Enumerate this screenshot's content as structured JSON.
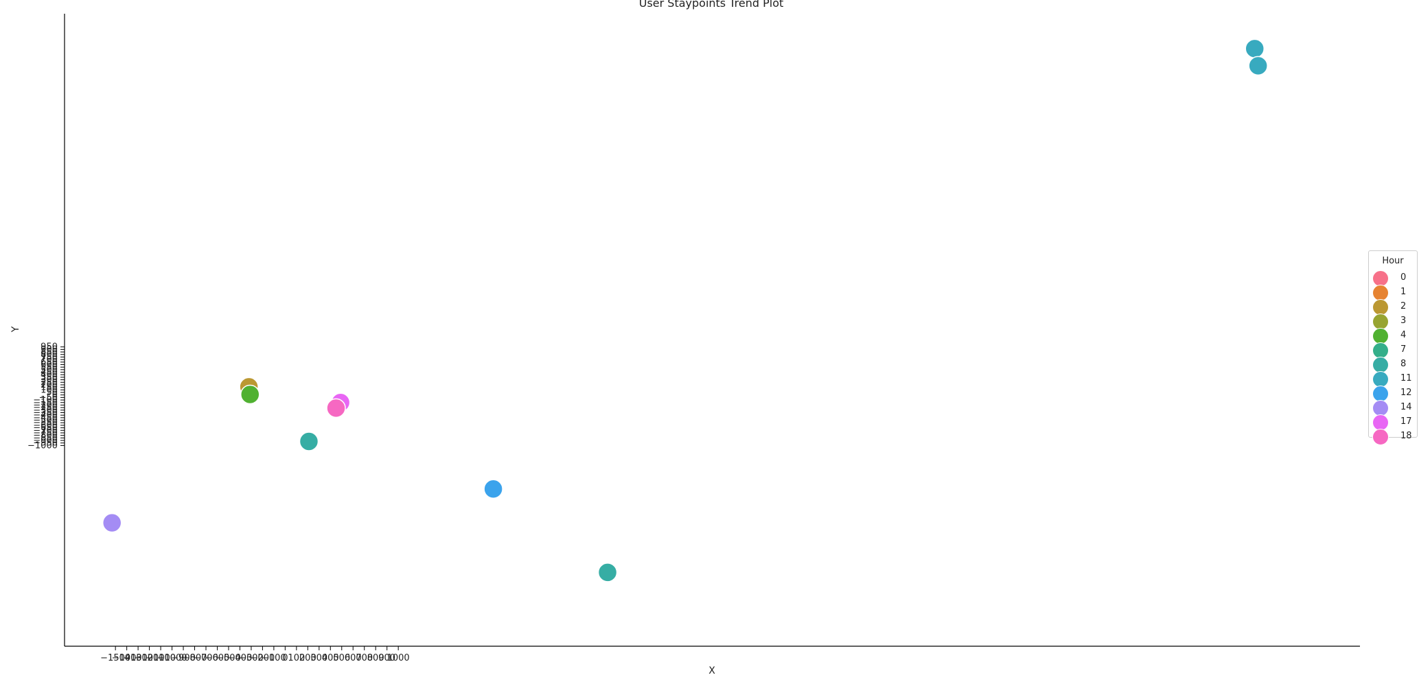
{
  "chart_data": {
    "type": "scatter",
    "title": "User Staypoints Trend Plot",
    "xlabel": "X",
    "ylabel": "Y",
    "yticks": [
      950,
      900,
      850,
      800,
      750,
      700,
      650,
      600,
      550,
      500,
      450,
      400,
      350,
      300,
      250,
      200,
      150,
      100,
      50,
      0,
      -50,
      -100,
      -150,
      -200,
      -250,
      -300,
      -350,
      -400,
      -450,
      -500,
      -550,
      -600,
      -650,
      -700,
      -750,
      -800,
      -850,
      -900,
      -950,
      -1000
    ],
    "xticks": [
      -1500,
      -1400,
      -1300,
      -1200,
      -1100,
      -1000,
      -900,
      -800,
      -700,
      -600,
      -500,
      -400,
      -300,
      -200,
      -100,
      0,
      100,
      200,
      300,
      400,
      500,
      600,
      700,
      800,
      900,
      1000
    ],
    "xlim": [
      -1950,
      9500
    ],
    "ylim": [
      -4970,
      7540
    ],
    "legend": {
      "title": "Hour",
      "position": "right",
      "entries": [
        {
          "label": "0",
          "color": "#f77189"
        },
        {
          "label": "1",
          "color": "#e68332"
        },
        {
          "label": "2",
          "color": "#bb9832"
        },
        {
          "label": "3",
          "color": "#97a431"
        },
        {
          "label": "4",
          "color": "#50b131"
        },
        {
          "label": "7",
          "color": "#34af8a"
        },
        {
          "label": "8",
          "color": "#36ada4"
        },
        {
          "label": "11",
          "color": "#38aabf"
        },
        {
          "label": "12",
          "color": "#3ba3ec"
        },
        {
          "label": "14",
          "color": "#a48cf4"
        },
        {
          "label": "17",
          "color": "#e866f4"
        },
        {
          "label": "18",
          "color": "#f668c2"
        }
      ]
    },
    "points": [
      {
        "hour": "2",
        "x": -320,
        "y": 160
      },
      {
        "hour": "4",
        "x": -310,
        "y": 10
      },
      {
        "hour": "17",
        "x": 490,
        "y": -150
      },
      {
        "hour": "18",
        "x": 450,
        "y": -260
      },
      {
        "hour": "8",
        "x": 210,
        "y": -920
      },
      {
        "hour": "12",
        "x": 1840,
        "y": -1860
      },
      {
        "hour": "14",
        "x": -1530,
        "y": -2530
      },
      {
        "hour": "8",
        "x": 2850,
        "y": -3510
      },
      {
        "hour": "11",
        "x": 8570,
        "y": 6850
      },
      {
        "hour": "11",
        "x": 8600,
        "y": 6510
      }
    ]
  }
}
